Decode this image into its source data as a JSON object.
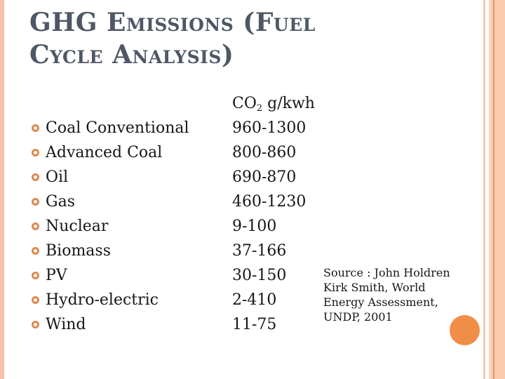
{
  "theme": {
    "title_color": "#4e5765",
    "text_color": "#161616",
    "bullet_orange": "#dd8a50",
    "accent_orange": "#f08e48",
    "stripe_salmon": "#f5c3ae",
    "stripe_light": "#f3c7b4",
    "stripe_pale": "#f8d6c6",
    "stripe_block": "#fbc9ae",
    "stripe_dark": "#e0925c"
  },
  "slide": {
    "title_lines": [
      "GHG Emissions (Fuel",
      "Cycle Analysis)"
    ],
    "table": {
      "header": {
        "co2_prefix": "CO",
        "co2_sub": "2",
        "co2_suffix": " g/kwh"
      },
      "rows": [
        {
          "fuel": "Coal Conventional",
          "value": "960-1300"
        },
        {
          "fuel": "Advanced Coal",
          "value": "800-860"
        },
        {
          "fuel": "Oil",
          "value": "690-870"
        },
        {
          "fuel": "Gas",
          "value": "460-1230"
        },
        {
          "fuel": "Nuclear",
          "value": "9-100"
        },
        {
          "fuel": "Biomass",
          "value": "37-166"
        },
        {
          "fuel": "PV",
          "value": "30-150"
        },
        {
          "fuel": "Hydro-electric",
          "value": "2-410"
        },
        {
          "fuel": "Wind",
          "value": "11-75"
        }
      ]
    },
    "source": {
      "lines": [
        "Source : John Holdren",
        "Kirk Smith, World",
        "Energy Assessment,",
        "UNDP, 2001"
      ]
    }
  }
}
